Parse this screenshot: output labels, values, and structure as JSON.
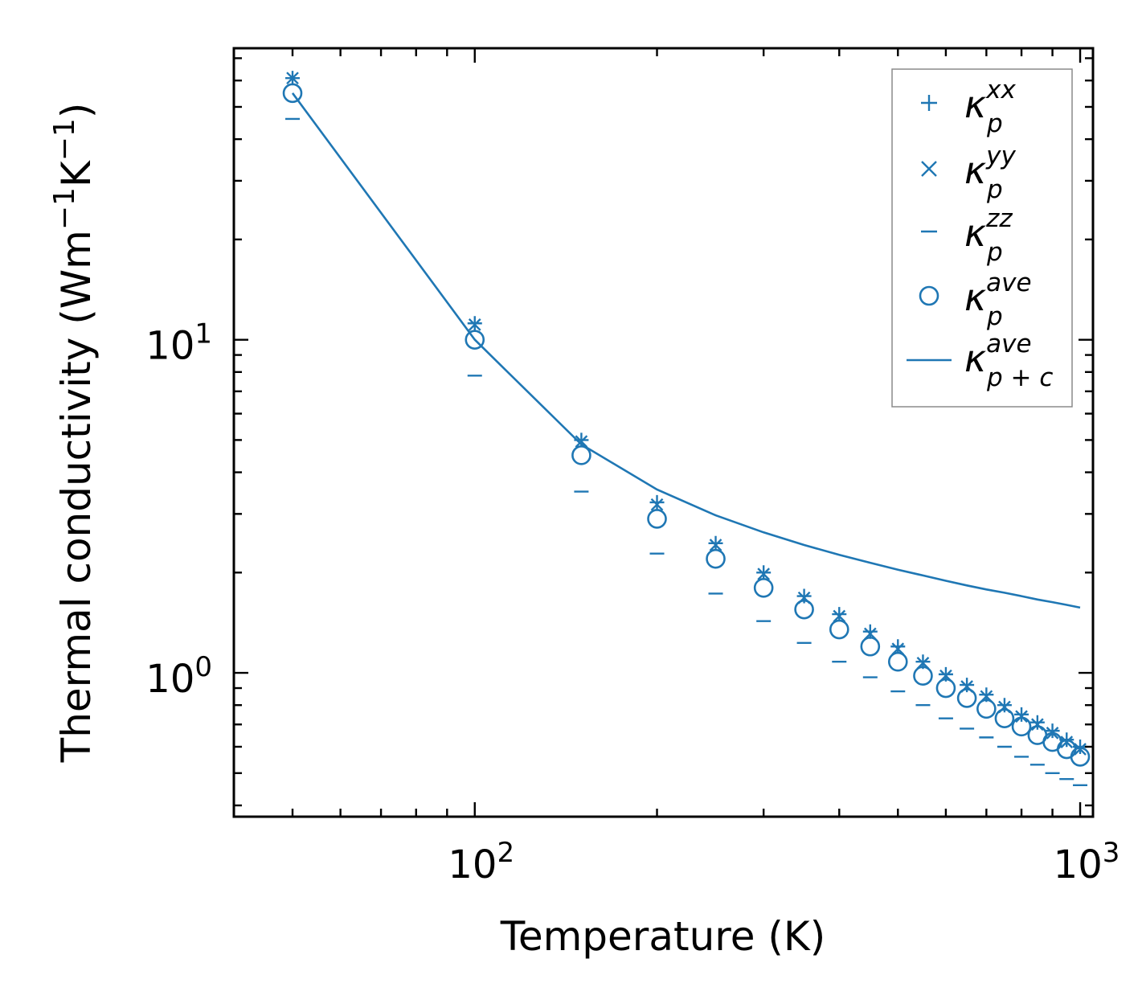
{
  "chart_data": {
    "type": "scatter",
    "xscale": "log",
    "yscale": "log",
    "xlabel": "Temperature (K)",
    "ylabel": "Thermal conductivity (Wm",
    "ylabel_sup1": "−1",
    "ylabel_mid": "K",
    "ylabel_sup2": "−1",
    "ylabel_end": ")",
    "xlim": [
      40,
      1050
    ],
    "ylim": [
      0.37,
      75
    ],
    "xticks": [
      {
        "value": 100,
        "base": "10",
        "exp": "2"
      },
      {
        "value": 1000,
        "base": "10",
        "exp": "3"
      }
    ],
    "yticks": [
      {
        "value": 1,
        "base": "10",
        "exp": "0"
      },
      {
        "value": 10,
        "base": "10",
        "exp": "1"
      }
    ],
    "x": [
      50,
      100,
      150,
      200,
      250,
      300,
      350,
      400,
      450,
      500,
      550,
      600,
      650,
      700,
      750,
      800,
      850,
      900,
      950,
      1000
    ],
    "series": [
      {
        "key": "xx",
        "marker": "plus",
        "name_base": "κ",
        "name_sup": "xx",
        "name_sub": "p",
        "values": [
          61,
          11.2,
          5.0,
          3.25,
          2.45,
          2.0,
          1.7,
          1.5,
          1.33,
          1.2,
          1.08,
          0.99,
          0.92,
          0.86,
          0.8,
          0.75,
          0.71,
          0.67,
          0.63,
          0.6
        ]
      },
      {
        "key": "yy",
        "marker": "x",
        "name_base": "κ",
        "name_sup": "yy",
        "name_sub": "p",
        "values": [
          61,
          11.1,
          4.95,
          3.2,
          2.42,
          1.98,
          1.68,
          1.48,
          1.31,
          1.18,
          1.07,
          0.98,
          0.91,
          0.85,
          0.79,
          0.74,
          0.7,
          0.66,
          0.62,
          0.59
        ]
      },
      {
        "key": "zz",
        "marker": "dash",
        "name_base": "κ",
        "name_sup": "zz",
        "name_sub": "p",
        "values": [
          46,
          7.8,
          3.5,
          2.28,
          1.73,
          1.43,
          1.23,
          1.08,
          0.97,
          0.88,
          0.8,
          0.73,
          0.68,
          0.64,
          0.6,
          0.56,
          0.53,
          0.5,
          0.48,
          0.46
        ]
      },
      {
        "key": "ave",
        "marker": "circle",
        "name_base": "κ",
        "name_sup": "ave",
        "name_sub": "p",
        "values": [
          55,
          10.0,
          4.5,
          2.9,
          2.2,
          1.8,
          1.55,
          1.35,
          1.2,
          1.08,
          0.98,
          0.9,
          0.84,
          0.78,
          0.73,
          0.69,
          0.65,
          0.62,
          0.59,
          0.56
        ]
      },
      {
        "key": "ave_pc",
        "marker": "line",
        "name_base": "κ",
        "name_sup": "ave",
        "name_sub": "p + c",
        "values": [
          55,
          10.0,
          4.85,
          3.55,
          2.97,
          2.64,
          2.42,
          2.26,
          2.14,
          2.04,
          1.96,
          1.89,
          1.83,
          1.78,
          1.74,
          1.7,
          1.66,
          1.63,
          1.6,
          1.57
        ]
      }
    ],
    "color": "#1f77b4",
    "legend_position": "top-right",
    "grid": false
  }
}
